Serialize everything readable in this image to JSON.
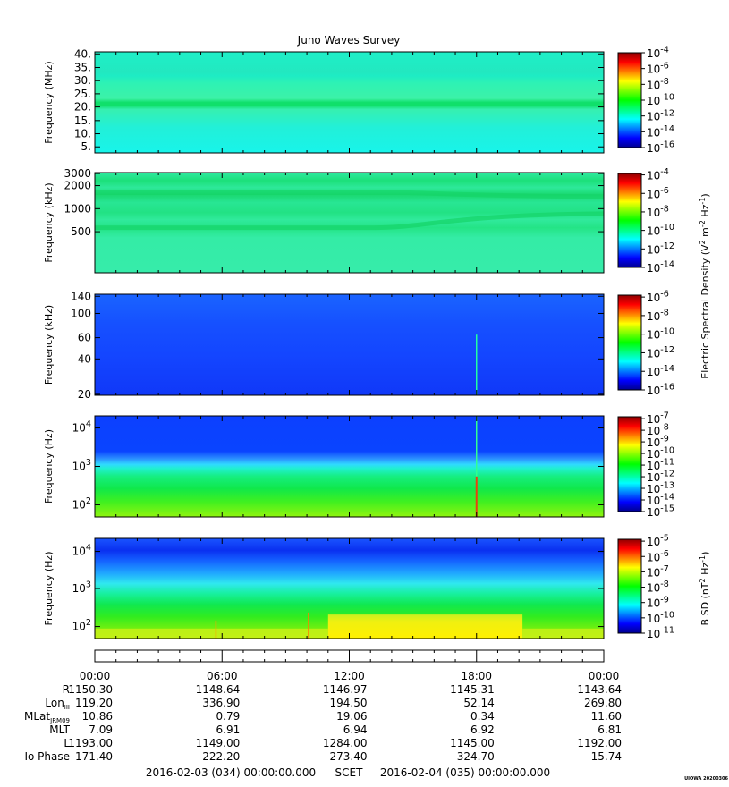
{
  "title": "Juno Waves Survey",
  "colors": {
    "colormap": [
      "#00008f",
      "#0000ff",
      "#007fff",
      "#00ffff",
      "#00ff7f",
      "#00ff00",
      "#7fff00",
      "#ffff00",
      "#ff7f00",
      "#ff0000",
      "#8f0000"
    ]
  },
  "chart_data": [
    {
      "type": "heatmap",
      "ylabel": "Frequency (MHz)",
      "yticks": [
        "40.",
        "35.",
        "30.",
        "25.",
        "20.",
        "15.",
        "10.",
        "5."
      ],
      "ylim": [
        3,
        41
      ],
      "colorbar_ticks": [
        "10^-4",
        "10^-6",
        "10^-8",
        "10^-10",
        "10^-12",
        "10^-14",
        "10^-16"
      ],
      "features": {
        "background": "cyan",
        "bands": [
          {
            "freq": 21.5,
            "color": "green"
          }
        ]
      }
    },
    {
      "type": "heatmap",
      "ylabel": "Frequency (kHz)",
      "yticks": [
        "3000",
        "2000",
        "1000",
        "500"
      ],
      "ylim": [
        100,
        3000
      ],
      "colorbar_ticks": [
        "10^-4",
        "10^-6",
        "10^-8",
        "10^-10",
        "10^-12",
        "10^-14"
      ],
      "features": {
        "background": "green",
        "bands": [
          {
            "freq": 1600,
            "color": "green"
          },
          {
            "freq": 800,
            "color": "green"
          },
          {
            "freq": 580,
            "color": "green"
          }
        ]
      }
    },
    {
      "type": "heatmap",
      "ylabel": "Frequency (kHz)",
      "yticks": [
        "140",
        "100",
        "60",
        "40",
        "20"
      ],
      "ylim": [
        20,
        140
      ],
      "colorbar_ticks": [
        "10^-6",
        "10^-8",
        "10^-10",
        "10^-12",
        "10^-14",
        "10^-16"
      ],
      "features": {
        "background": "blue",
        "spike_time": "18:00"
      }
    },
    {
      "type": "heatmap",
      "ylabel": "Frequency (Hz)",
      "yticks": [
        "10^4",
        "10^3",
        "10^2"
      ],
      "ylim": [
        50,
        20000
      ],
      "colorbar_ticks": [
        "10^-7",
        "10^-8",
        "10^-9",
        "10^-10",
        "10^-11",
        "10^-12",
        "10^-13",
        "10^-14",
        "10^-15"
      ],
      "features": {
        "background": "blue",
        "low_freq": "green",
        "spike_time": "18:00"
      }
    },
    {
      "type": "heatmap",
      "ylabel": "Frequency (Hz)",
      "yticks": [
        "10^4",
        "10^3",
        "10^2"
      ],
      "ylim": [
        50,
        20000
      ],
      "colorbar_ticks": [
        "10^-5",
        "10^-6",
        "10^-7",
        "10^-8",
        "10^-9",
        "10^-10",
        "10^-11"
      ],
      "features": {
        "background": "blue",
        "low_freq": "green",
        "yellow_interval": [
          "11:00",
          "20:10"
        ]
      }
    }
  ],
  "colorbar_label_electric": "Electric Spectral Density (V^2 m^-2 Hz^-1)",
  "colorbar_label_magnetic": "B SD (nT^2 Hz^-1)",
  "x_axis": {
    "ticks": [
      "00:00",
      "06:00",
      "12:00",
      "18:00",
      "00:00"
    ],
    "rows": [
      {
        "label": "R",
        "values": [
          "1150.30",
          "1148.64",
          "1146.97",
          "1145.31",
          "1143.64"
        ]
      },
      {
        "label": "Lon_III",
        "values": [
          "119.20",
          "336.90",
          "194.50",
          "52.14",
          "269.80"
        ]
      },
      {
        "label": "MLat_JRM09",
        "values": [
          "10.86",
          "0.79",
          "19.06",
          "0.34",
          "11.60"
        ]
      },
      {
        "label": "MLT",
        "values": [
          "7.09",
          "6.91",
          "6.94",
          "6.92",
          "6.81"
        ]
      },
      {
        "label": "L",
        "values": [
          "1193.00",
          "1149.00",
          "1284.00",
          "1145.00",
          "1192.00"
        ]
      },
      {
        "label": "Io Phase",
        "values": [
          "171.40",
          "222.20",
          "273.40",
          "324.70",
          "15.74"
        ]
      }
    ],
    "start": "2016-02-03 (034) 00:00:00.000",
    "scet": "SCET",
    "end": "2016-02-04 (035) 00:00:00.000"
  },
  "footer_tag": "UIOWA 20200306"
}
